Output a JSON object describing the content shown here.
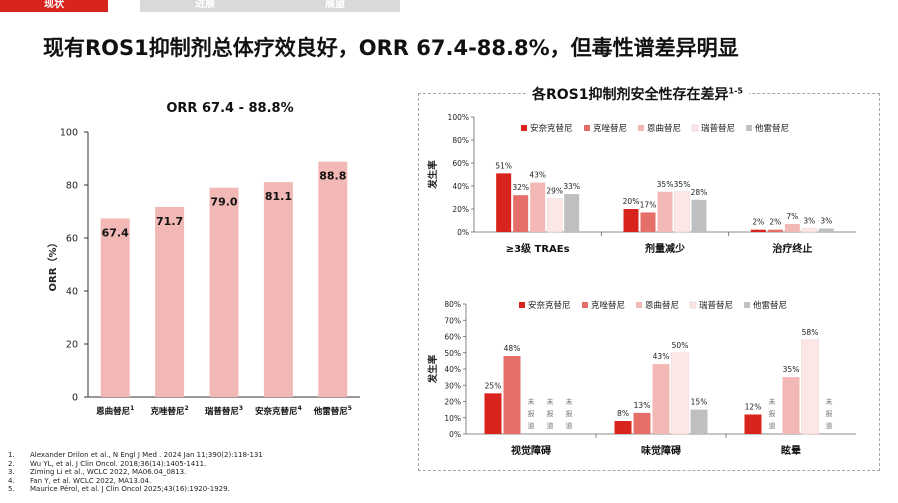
{
  "tabs": [
    {
      "label": "现状",
      "active": true
    },
    {
      "label": "进展",
      "active": false
    },
    {
      "label": "展望",
      "active": false
    }
  ],
  "page_title": "现有ROS1抑制剂总体疗效良好，ORR 67.4-88.8%，但毒性谱差异明显",
  "right_title": "各ROS1抑制剂安全性存在差异",
  "right_title_sup": "1-5",
  "colors": {
    "orr_bar": "#f2b8b5",
    "series": [
      "#d9231d",
      "#e66e69",
      "#f2b8b5",
      "#fce6e6",
      "#bfbfbf"
    ],
    "accent": "#d9231d"
  },
  "chart_data": [
    {
      "type": "bar",
      "title": "ORR 67.4 - 88.8%",
      "ylabel": "ORR（%）",
      "xlabel": "",
      "ylim": [
        0,
        100
      ],
      "yticks": [
        0,
        20,
        40,
        60,
        80,
        100
      ],
      "categories": [
        {
          "name": "恩曲替尼",
          "sup": "1"
        },
        {
          "name": "克唑替尼",
          "sup": "2"
        },
        {
          "name": "瑞普替尼",
          "sup": "3"
        },
        {
          "name": "安奈克替尼",
          "sup": "4"
        },
        {
          "name": "他雷替尼",
          "sup": "5"
        }
      ],
      "values": [
        67.4,
        71.7,
        79.0,
        81.1,
        88.8
      ],
      "value_labels": [
        "67.4",
        "71.7",
        "79.0",
        "81.1",
        "88.8"
      ]
    },
    {
      "type": "bar",
      "ylabel": "发生率",
      "ylim": [
        0,
        100
      ],
      "yticks": [
        "0%",
        "20%",
        "40%",
        "60%",
        "80%",
        "100%"
      ],
      "legend": [
        "安奈克替尼",
        "克唑替尼",
        "恩曲替尼",
        "瑞普替尼",
        "他雷替尼"
      ],
      "categories": [
        "≥3级 TRAEs",
        "剂量减少",
        "治疗终止"
      ],
      "series": [
        {
          "name": "安奈克替尼",
          "values": [
            51,
            20,
            2
          ],
          "labels": [
            "51%",
            "20%",
            "2%"
          ]
        },
        {
          "name": "克唑替尼",
          "values": [
            32,
            17,
            2
          ],
          "labels": [
            "32%",
            "17%",
            "2%"
          ]
        },
        {
          "name": "恩曲替尼",
          "values": [
            43,
            35,
            7
          ],
          "labels": [
            "43%",
            "35%",
            "7%"
          ]
        },
        {
          "name": "瑞普替尼",
          "values": [
            29,
            35,
            3
          ],
          "labels": [
            "29%",
            "35%",
            "3%"
          ]
        },
        {
          "name": "他雷替尼",
          "values": [
            33,
            28,
            3
          ],
          "labels": [
            "33%",
            "28%",
            "3%"
          ]
        }
      ]
    },
    {
      "type": "bar",
      "ylabel": "发生率",
      "ylim": [
        0,
        80
      ],
      "yticks": [
        "0%",
        "10%",
        "20%",
        "30%",
        "40%",
        "50%",
        "60%",
        "70%",
        "80%"
      ],
      "legend": [
        "安奈克替尼",
        "克唑替尼",
        "恩曲替尼",
        "瑞普替尼",
        "他雷替尼"
      ],
      "categories": [
        "视觉障碍",
        "味觉障碍",
        "眩晕"
      ],
      "not_reported_text": "未报道",
      "series": [
        {
          "name": "安奈克替尼",
          "values": [
            25,
            8,
            12
          ],
          "labels": [
            "25%",
            "8%",
            "12%"
          ]
        },
        {
          "name": "克唑替尼",
          "values": [
            48,
            13,
            null
          ],
          "labels": [
            "48%",
            "13%",
            null
          ]
        },
        {
          "name": "恩曲替尼",
          "values": [
            null,
            43,
            35
          ],
          "labels": [
            null,
            "43%",
            "35%"
          ]
        },
        {
          "name": "瑞普替尼",
          "values": [
            null,
            50,
            58
          ],
          "labels": [
            null,
            "50%",
            "58%"
          ]
        },
        {
          "name": "他雷替尼",
          "values": [
            null,
            15,
            null
          ],
          "labels": [
            null,
            "15%",
            null
          ]
        }
      ]
    }
  ],
  "references": [
    {
      "num": "1.",
      "text": "Alexander Drilon et al., N Engl J Med . 2024 Jan 11;390(2):118-131"
    },
    {
      "num": "2.",
      "text": "Wu YL, et al. J Clin Oncol. 2018;36(14):1405-1411."
    },
    {
      "num": "3.",
      "text": "Ziming Li et al., WCLC 2022, MA06.04_0813."
    },
    {
      "num": "4.",
      "text": "Fan Y, et al. WCLC 2022, MA13.04."
    },
    {
      "num": "5.",
      "text": "Maurice Pérol, et al. J Clin Oncol 2025;43(16):1920-1929."
    }
  ]
}
